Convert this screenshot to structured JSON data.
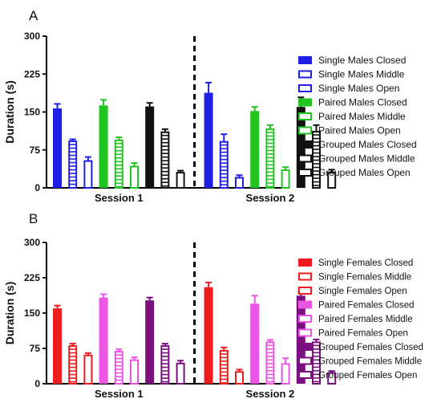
{
  "panels": [
    {
      "label": "A",
      "ylabel": "Duration (s)",
      "ylim": [
        0,
        300
      ],
      "yticks": [
        "0",
        "75",
        "150",
        "225",
        "300"
      ],
      "sessions": [
        "Session 1",
        "Session 2"
      ],
      "legend": [
        {
          "name": "Single Males Closed",
          "color": "#1f1fe6",
          "style": "solid"
        },
        {
          "name": "Single Males Middle",
          "color": "#1f1fe6",
          "style": "striped"
        },
        {
          "name": "Single Males Open",
          "color": "#1f1fe6",
          "style": "hollow"
        },
        {
          "name": "Paired Males Closed",
          "color": "#22c422",
          "style": "solid"
        },
        {
          "name": "Paired Males Middle",
          "color": "#22c422",
          "style": "striped"
        },
        {
          "name": "Paired Males Open",
          "color": "#22c422",
          "style": "hollow"
        },
        {
          "name": "Grouped Males Closed",
          "color": "#111111",
          "style": "solid"
        },
        {
          "name": "Grouped Males Middle",
          "color": "#111111",
          "style": "striped"
        },
        {
          "name": "Grouped Males Open",
          "color": "#111111",
          "style": "hollow"
        }
      ]
    },
    {
      "label": "B",
      "ylabel": "Duration (s)",
      "ylim": [
        0,
        300
      ],
      "yticks": [
        "0",
        "75",
        "150",
        "225",
        "300"
      ],
      "sessions": [
        "Session 1",
        "Session 2"
      ],
      "legend": [
        {
          "name": "Single Females Closed",
          "color": "#ee1c1c",
          "style": "solid"
        },
        {
          "name": "Single Females Middle",
          "color": "#ee1c1c",
          "style": "striped"
        },
        {
          "name": "Single Females Open",
          "color": "#ee1c1c",
          "style": "hollow"
        },
        {
          "name": "Paired Females Closed",
          "color": "#ea55e3",
          "style": "solid"
        },
        {
          "name": "Paired Females Middle",
          "color": "#ea55e3",
          "style": "striped"
        },
        {
          "name": "Paired Females Open",
          "color": "#ea55e3",
          "style": "hollow"
        },
        {
          "name": "Grouped Females Closed",
          "color": "#7a0f80",
          "style": "solid"
        },
        {
          "name": "Grouped Females Middle",
          "color": "#7a0f80",
          "style": "striped"
        },
        {
          "name": "Grouped Females Open",
          "color": "#7a0f80",
          "style": "hollow"
        }
      ]
    }
  ],
  "chart_data": [
    {
      "type": "bar",
      "title": "A",
      "ylabel": "Duration (s)",
      "ylim": [
        0,
        300
      ],
      "categories": [
        "Session 1",
        "Session 2"
      ],
      "error_bars": true,
      "series": [
        {
          "name": "Single Males Closed",
          "values": [
            157,
            188
          ],
          "errors": [
            9,
            20
          ]
        },
        {
          "name": "Single Males Middle",
          "values": [
            92,
            91
          ],
          "errors": [
            4,
            15
          ]
        },
        {
          "name": "Single Males Open",
          "values": [
            53,
            20
          ],
          "errors": [
            8,
            5
          ]
        },
        {
          "name": "Paired Males Closed",
          "values": [
            163,
            152
          ],
          "errors": [
            11,
            8
          ]
        },
        {
          "name": "Paired Males Middle",
          "values": [
            94,
            116
          ],
          "errors": [
            6,
            8
          ]
        },
        {
          "name": "Paired Males Open",
          "values": [
            42,
            35
          ],
          "errors": [
            7,
            6
          ]
        },
        {
          "name": "Grouped Males Closed",
          "values": [
            161,
            160
          ],
          "errors": [
            7,
            19
          ]
        },
        {
          "name": "Grouped Males Middle",
          "values": [
            110,
            111
          ],
          "errors": [
            6,
            13
          ]
        },
        {
          "name": "Grouped Males Open",
          "values": [
            30,
            30
          ],
          "errors": [
            4,
            6
          ]
        }
      ]
    },
    {
      "type": "bar",
      "title": "B",
      "ylabel": "Duration (s)",
      "ylim": [
        0,
        300
      ],
      "categories": [
        "Session 1",
        "Session 2"
      ],
      "error_bars": true,
      "series": [
        {
          "name": "Single Females Closed",
          "values": [
            160,
            205
          ],
          "errors": [
            6,
            10
          ]
        },
        {
          "name": "Single Females Middle",
          "values": [
            80,
            70
          ],
          "errors": [
            5,
            7
          ]
        },
        {
          "name": "Single Females Open",
          "values": [
            60,
            25
          ],
          "errors": [
            5,
            5
          ]
        },
        {
          "name": "Paired Females Closed",
          "values": [
            183,
            170
          ],
          "errors": [
            7,
            17
          ]
        },
        {
          "name": "Paired Females Middle",
          "values": [
            68,
            88
          ],
          "errors": [
            5,
            5
          ]
        },
        {
          "name": "Paired Females Open",
          "values": [
            50,
            42
          ],
          "errors": [
            6,
            12
          ]
        },
        {
          "name": "Grouped Females Closed",
          "values": [
            177,
            187
          ],
          "errors": [
            6,
            7
          ]
        },
        {
          "name": "Grouped Females Middle",
          "values": [
            80,
            88
          ],
          "errors": [
            5,
            6
          ]
        },
        {
          "name": "Grouped Females Open",
          "values": [
            43,
            23
          ],
          "errors": [
            6,
            4
          ]
        }
      ]
    }
  ]
}
